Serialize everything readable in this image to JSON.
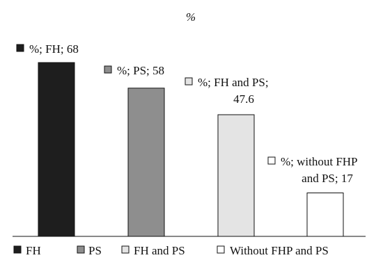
{
  "chart_data": {
    "type": "bar",
    "title": "%",
    "xlabel": "",
    "ylabel": "",
    "categories": [
      "FH",
      "PS",
      "FH and PS",
      "Without FHP and PS"
    ],
    "values": [
      68,
      58,
      47.6,
      17
    ],
    "ylim": [
      0,
      70
    ],
    "grid": false,
    "legend_position": "bottom",
    "colors": [
      "#1e1e1e",
      "#8e8e8e",
      "#e4e4e4",
      "#ffffff"
    ],
    "data_labels": [
      {
        "lines": [
          "%; FH; 68"
        ]
      },
      {
        "lines": [
          "%; PS; 58"
        ]
      },
      {
        "lines": [
          "%; FH and PS;",
          "47.6"
        ]
      },
      {
        "lines": [
          "%; without FHP",
          "and PS; 17"
        ]
      }
    ]
  }
}
